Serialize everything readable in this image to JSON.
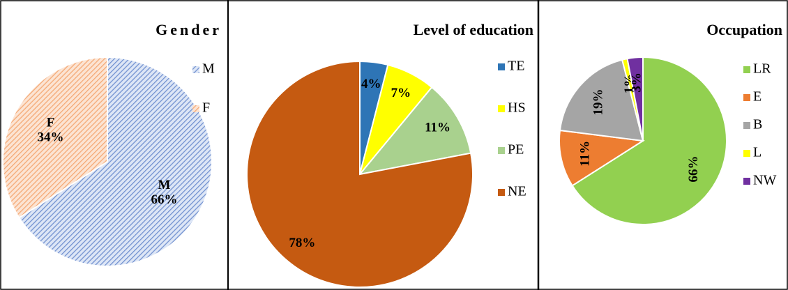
{
  "chart_data": [
    {
      "type": "pie",
      "title": "Gender",
      "categories": [
        "M",
        "F"
      ],
      "values": [
        66,
        34
      ],
      "value_labels": [
        "66%",
        "34%"
      ],
      "colors": [
        "#8fa9dc",
        "#f4b183"
      ],
      "hatched": true,
      "label_rotation": 0
    },
    {
      "type": "pie",
      "title": "Level of education",
      "categories": [
        "TE",
        "HS",
        "PE",
        "NE"
      ],
      "values": [
        4,
        7,
        11,
        78
      ],
      "value_labels": [
        "4%",
        "7%",
        "11%",
        "78%"
      ],
      "colors": [
        "#2e75b6",
        "#ffff00",
        "#a9d18e",
        "#c55a11"
      ],
      "hatched": false,
      "label_rotation": 0
    },
    {
      "type": "pie",
      "title": "Occupation",
      "categories": [
        "LR",
        "E",
        "B",
        "L",
        "NW"
      ],
      "values": [
        66,
        11,
        19,
        1,
        3
      ],
      "value_labels": [
        "66%",
        "11%",
        "19%",
        "1%",
        "3%"
      ],
      "colors": [
        "#92d050",
        "#ed7d31",
        "#a5a5a5",
        "#ffff00",
        "#7030a0"
      ],
      "hatched": false,
      "label_rotation": -90
    }
  ]
}
